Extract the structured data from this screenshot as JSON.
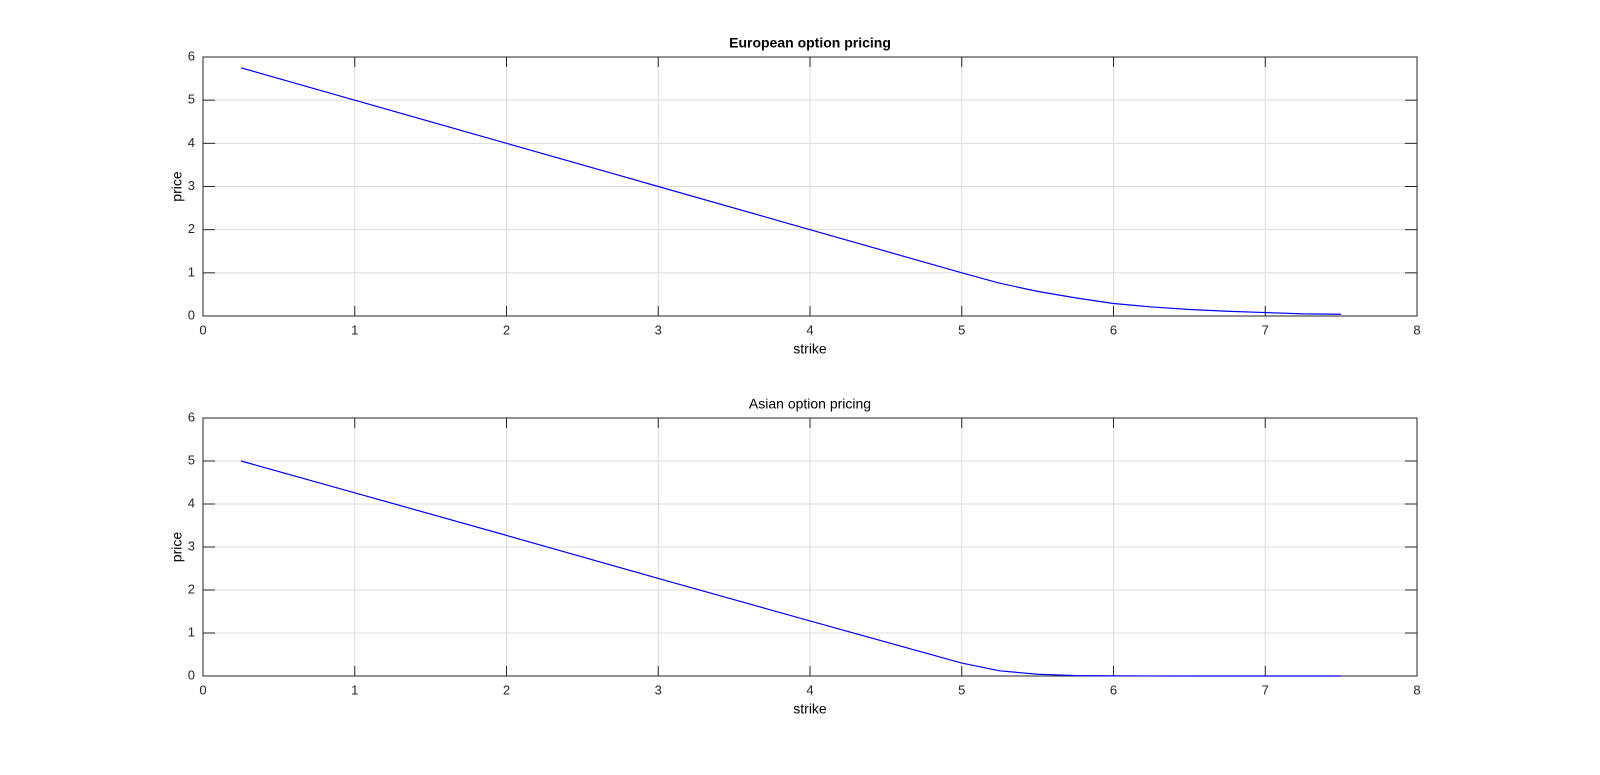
{
  "chart_data": [
    {
      "type": "line",
      "title": "European option pricing",
      "xlabel": "strike",
      "ylabel": "price",
      "x": [
        0.25,
        1,
        2,
        3,
        4,
        5,
        5.25,
        5.5,
        5.75,
        6,
        6.25,
        6.5,
        6.75,
        7,
        7.25,
        7.5
      ],
      "series": [
        {
          "color": "#0000ff",
          "values": [
            5.75,
            5.0,
            4.0,
            3.0,
            2.0,
            1.0,
            0.76,
            0.57,
            0.42,
            0.29,
            0.21,
            0.15,
            0.11,
            0.08,
            0.05,
            0.04
          ]
        }
      ],
      "xlim": [
        0,
        8
      ],
      "xticks": [
        0,
        1,
        2,
        3,
        4,
        5,
        6,
        7,
        8
      ],
      "ylim": [
        0,
        6
      ],
      "yticks": [
        0,
        1,
        2,
        3,
        4,
        5,
        6
      ],
      "grid": true
    },
    {
      "type": "line",
      "title": "Asian option pricing",
      "xlabel": "strike",
      "ylabel": "price",
      "x": [
        0.25,
        1,
        2,
        3,
        4,
        5,
        5.25,
        5.5,
        5.75,
        6,
        6.25,
        6.5,
        6.75,
        7,
        7.25,
        7.5
      ],
      "series": [
        {
          "color": "#0000ff",
          "values": [
            5.0,
            4.26,
            3.27,
            2.27,
            1.28,
            0.3,
            0.12,
            0.04,
            0.01,
            0.003,
            0.001,
            0,
            0,
            0,
            0,
            0
          ]
        }
      ],
      "xlim": [
        0,
        8
      ],
      "xticks": [
        0,
        1,
        2,
        3,
        4,
        5,
        6,
        7,
        8
      ],
      "ylim": [
        0,
        6
      ],
      "yticks": [
        0,
        1,
        2,
        3,
        4,
        5,
        6
      ],
      "grid": true
    }
  ]
}
